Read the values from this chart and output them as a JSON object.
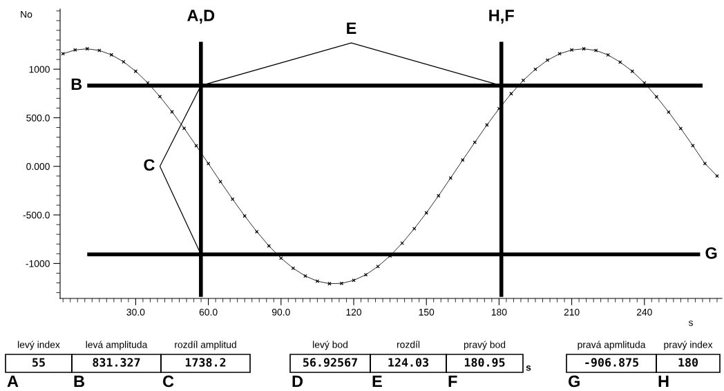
{
  "chart_data": {
    "type": "line",
    "xlabel": "s",
    "ylabel": "No",
    "x": [
      0,
      5,
      10,
      15,
      20,
      25,
      30,
      35,
      40,
      45,
      50,
      55,
      60,
      65,
      70,
      75,
      80,
      85,
      90,
      95,
      100,
      105,
      110,
      115,
      120,
      125,
      130,
      135,
      140,
      145,
      150,
      155,
      160,
      165,
      170,
      175,
      180,
      185,
      190,
      195,
      200,
      205,
      210,
      215,
      220,
      225,
      230,
      235,
      240,
      245,
      250,
      255,
      260,
      265,
      270
    ],
    "series": [
      {
        "color": "#000000",
        "values": [
          1159,
          1198,
          1210,
          1193,
          1148,
          1076,
          979,
          859,
          718,
          561,
          392,
          212,
          28,
          -158,
          -338,
          -511,
          -673,
          -819,
          -946,
          -1049,
          -1129,
          -1182,
          -1208,
          -1205,
          -1174,
          -1116,
          -1031,
          -922,
          -791,
          -642,
          -479,
          -303,
          -120,
          65,
          247,
          426,
          594,
          748,
          885,
          1000,
          1093,
          1159,
          1198,
          1210,
          1193,
          1147,
          1073,
          979,
          859,
          716,
          559,
          390,
          213,
          29,
          -100
        ]
      },
      {
        "type": "line",
        "marker": "none",
        "color": "#000000",
        "x": [
          56.92567,
          40,
          56.92567
        ],
        "values": [
          831.327,
          0,
          -906.875
        ]
      },
      {
        "type": "line",
        "marker": "none",
        "color": "#000000",
        "x": [
          56.92567,
          119,
          180.95
        ],
        "values": [
          831.327,
          1270,
          831.327
        ]
      }
    ],
    "marker": "cross",
    "line_style": "solid",
    "grid": false,
    "legend": false,
    "xlim": [
      -1.2,
      272
    ],
    "ylim": [
      -1360,
      1620
    ],
    "xticks": [
      {
        "value": 30,
        "label": "30.0"
      },
      {
        "value": 60,
        "label": "60.0"
      },
      {
        "value": 90,
        "label": "90.0"
      },
      120,
      150,
      180,
      210,
      240
    ],
    "yticks": [
      {
        "value": 1000,
        "label": "1000"
      },
      {
        "value": 500,
        "label": "500.0"
      },
      {
        "value": 0,
        "label": "0.000"
      },
      {
        "value": -500,
        "label": "-500.0"
      },
      {
        "value": -1000,
        "label": "-1000"
      }
    ],
    "ref_lines": [
      {
        "axis": "x",
        "value": 56.92567,
        "label": "A,D",
        "color": "#000000"
      },
      {
        "axis": "x",
        "value": 180.95,
        "label": "H,F",
        "color": "#000000"
      },
      {
        "axis": "y",
        "value": 831.327,
        "label": "B",
        "color": "#000000"
      },
      {
        "axis": "y",
        "value": -906.875,
        "label": "G",
        "color": "#000000"
      }
    ],
    "annotations": [
      "C",
      "E",
      "levý index",
      "55",
      "A",
      "levá amplituda",
      "831.327",
      "B",
      "rozdíl amplitud",
      "1738.2",
      "C",
      "levý bod",
      "56.92567",
      "D",
      "rozdíl",
      "124.03",
      "E",
      "pravý bod",
      "180.95",
      "F",
      "pravá apmlituda",
      "-906.875",
      "G",
      "pravý index",
      "180",
      "H",
      "s"
    ]
  }
}
